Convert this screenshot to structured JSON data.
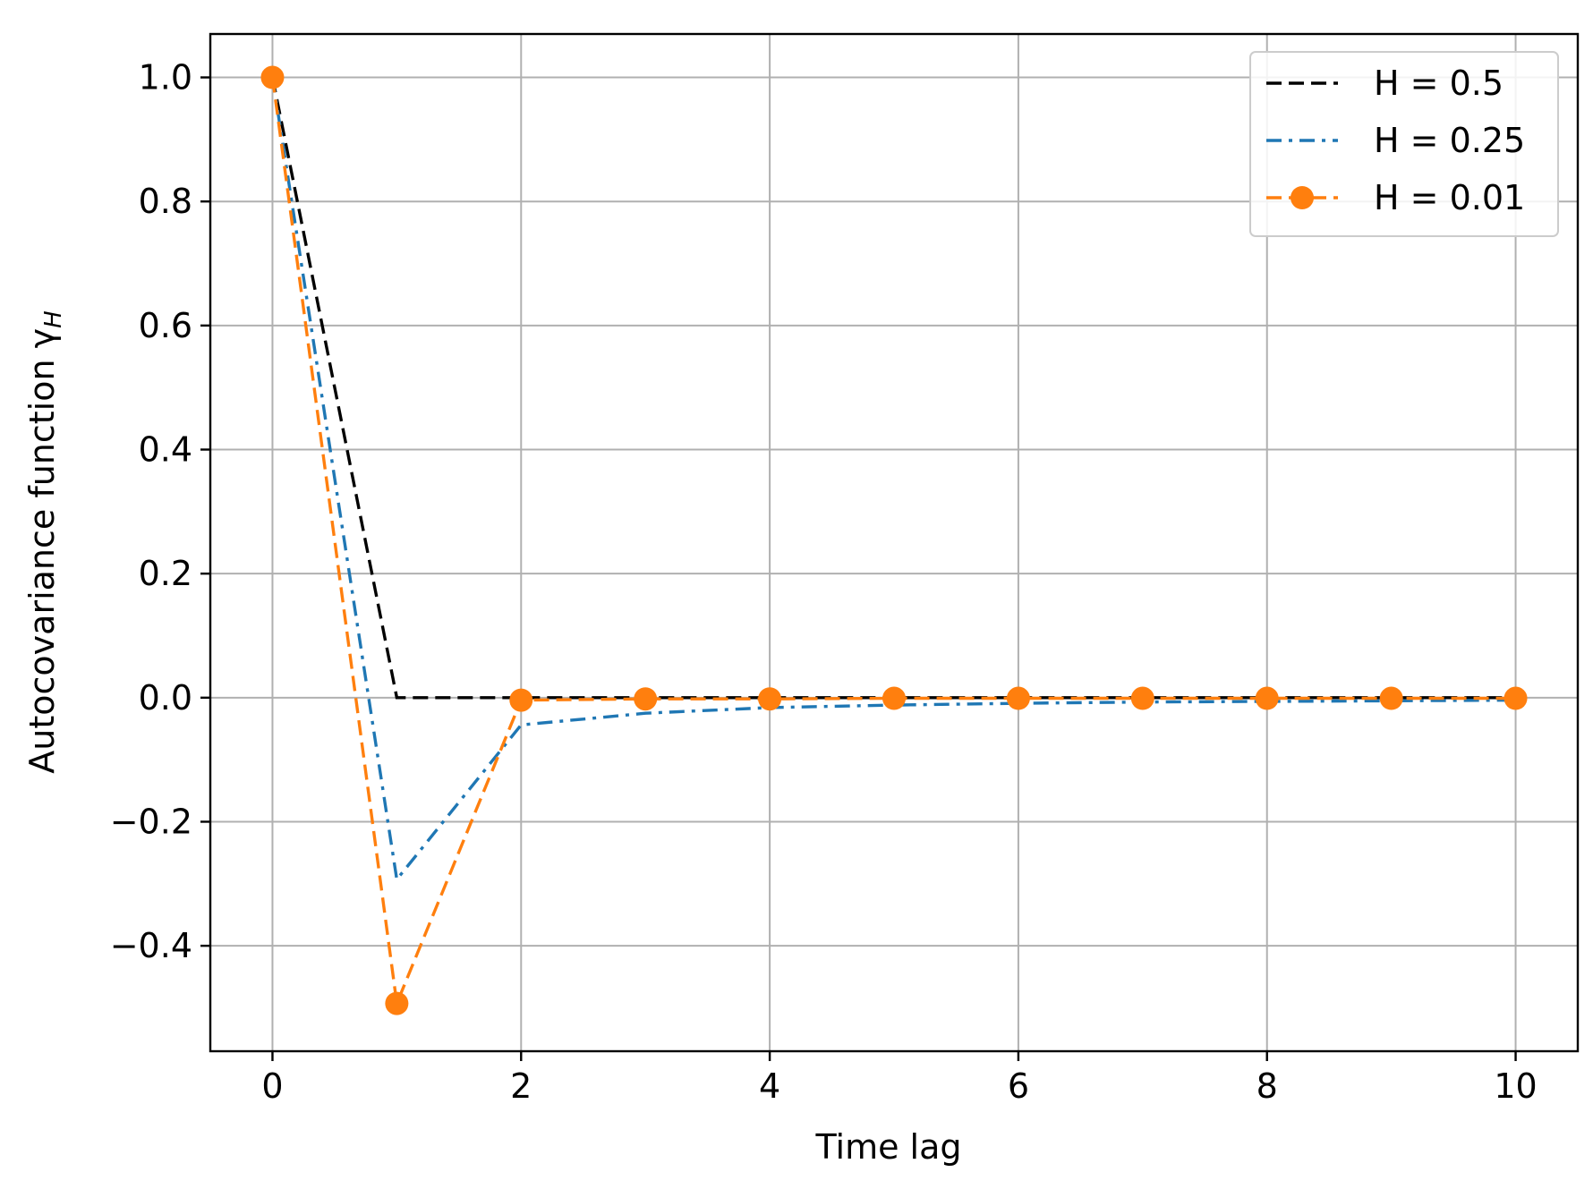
{
  "chart_data": {
    "type": "line",
    "xlabel": "Time lag",
    "ylabel_main": "Autocovariance function γ",
    "ylabel_sub": "H",
    "xlim": [
      -0.5,
      10.5
    ],
    "ylim": [
      -0.57,
      1.07
    ],
    "xticks": [
      0,
      2,
      4,
      6,
      8,
      10
    ],
    "xtick_labels": [
      "0",
      "2",
      "4",
      "6",
      "8",
      "10"
    ],
    "yticks": [
      1.0,
      0.8,
      0.6,
      0.4,
      0.2,
      0.0,
      -0.2,
      -0.4
    ],
    "ytick_labels": [
      "1.0",
      "0.8",
      "0.6",
      "0.4",
      "0.2",
      "0.0",
      "−0.2",
      "−0.4"
    ],
    "grid": true,
    "legend_position": "top-right",
    "x": [
      0,
      1,
      2,
      3,
      4,
      5,
      6,
      7,
      8,
      9,
      10
    ],
    "series": [
      {
        "name": "H = 0.5",
        "color": "#000000",
        "linestyle": "dashed",
        "marker": "none",
        "values": [
          1.0,
          0.0,
          0.0,
          0.0,
          0.0,
          0.0,
          0.0,
          0.0,
          0.0,
          0.0,
          0.0
        ]
      },
      {
        "name": "H = 0.25",
        "color": "#1f77b4",
        "linestyle": "dashdot",
        "marker": "none",
        "values": [
          1.0,
          -0.293,
          -0.044,
          -0.025,
          -0.016,
          -0.012,
          -0.009,
          -0.007,
          -0.006,
          -0.005,
          -0.004
        ]
      },
      {
        "name": "H = 0.01",
        "color": "#ff7f0e",
        "linestyle": "dashed",
        "marker": "circle",
        "values": [
          1.0,
          -0.493,
          -0.004,
          -0.002,
          -0.002,
          -0.001,
          -0.001,
          -0.001,
          -0.001,
          -0.001,
          -0.001
        ]
      }
    ]
  }
}
